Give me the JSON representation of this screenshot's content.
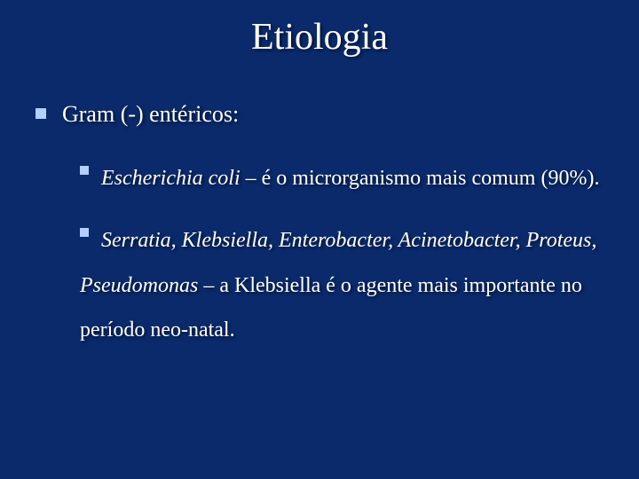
{
  "slide": {
    "background_color": "#0a2a6b",
    "text_color": "#ffffff",
    "bullet_color": "#b2cffe",
    "shadow_color": "rgba(0,0,0,0.55)",
    "font_family": "Times New Roman",
    "title": "Etiologia",
    "title_fontsize": 42,
    "body_fontsize_l1": 26,
    "body_fontsize_l2": 24,
    "level1": {
      "text": "Gram (-) entéricos:"
    },
    "level2": [
      {
        "italic_part": "Escherichia coli",
        "rest_part": " – é o microrganismo mais comum (90%)."
      },
      {
        "italic_part": "Serratia, Klebsiella, Enterobacter, Acinetobacter, Proteus, Pseudomonas ",
        "rest_part": " – a Klebsiella é o agente mais importante no período neo-natal."
      }
    ]
  }
}
